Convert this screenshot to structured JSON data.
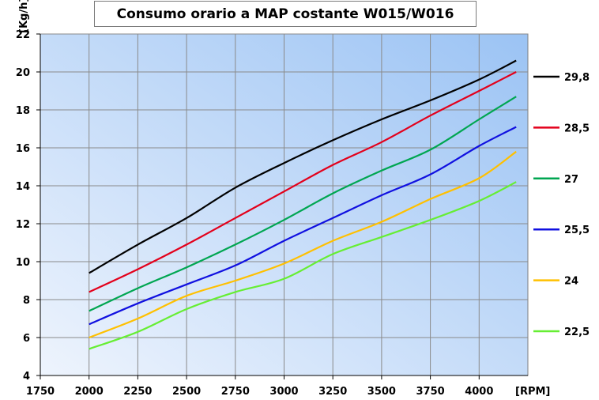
{
  "chart_data": {
    "type": "line",
    "title": "Consumo orario a MAP costante W015/W016",
    "ylabel": "[Kg/h]",
    "xlabel": "[RPM]",
    "xlim": [
      1750,
      4250
    ],
    "ylim": [
      4,
      22
    ],
    "x_ticks": [
      1750,
      2000,
      2250,
      2500,
      2750,
      3000,
      3250,
      3500,
      3750,
      4000
    ],
    "y_ticks": [
      4,
      6,
      8,
      10,
      12,
      14,
      16,
      18,
      20,
      22
    ],
    "x": [
      2000,
      2250,
      2500,
      2750,
      3000,
      3250,
      3500,
      3750,
      4000,
      4190
    ],
    "series": [
      {
        "name": "29,8",
        "color": "#000000",
        "values": [
          9.4,
          10.9,
          12.3,
          13.9,
          15.2,
          16.4,
          17.5,
          18.5,
          19.6,
          20.6
        ]
      },
      {
        "name": "28,5",
        "color": "#e3001b",
        "values": [
          8.4,
          9.6,
          10.9,
          12.3,
          13.7,
          15.1,
          16.3,
          17.7,
          19.0,
          20.0
        ]
      },
      {
        "name": "27",
        "color": "#00a651",
        "values": [
          7.4,
          8.6,
          9.7,
          10.9,
          12.2,
          13.6,
          14.8,
          15.9,
          17.5,
          18.7
        ]
      },
      {
        "name": "25,5",
        "color": "#1010e0",
        "values": [
          6.7,
          7.8,
          8.8,
          9.8,
          11.1,
          12.3,
          13.5,
          14.6,
          16.1,
          17.1
        ]
      },
      {
        "name": "24",
        "color": "#ffc000",
        "values": [
          6.0,
          7.0,
          8.2,
          9.0,
          9.9,
          11.1,
          12.1,
          13.3,
          14.4,
          15.8
        ]
      },
      {
        "name": "22,5",
        "color": "#66ee33",
        "values": [
          5.4,
          6.3,
          7.5,
          8.4,
          9.1,
          10.4,
          11.3,
          12.2,
          13.2,
          14.2
        ]
      }
    ]
  }
}
